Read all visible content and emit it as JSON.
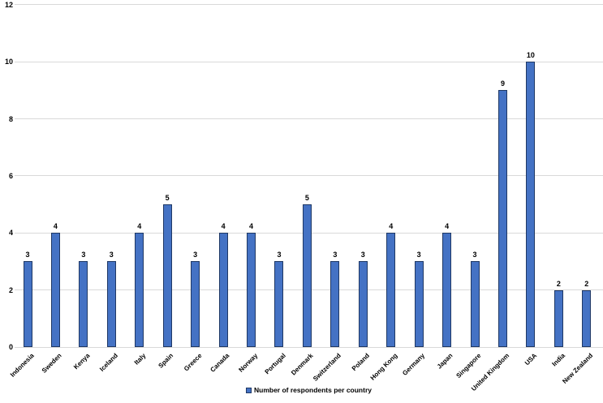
{
  "chart_data": {
    "type": "bar",
    "title": "",
    "xlabel": "",
    "ylabel": "",
    "legend": "Number of respondents per country",
    "legend_position": "bottom-center",
    "categories": [
      "Indonesia",
      "Sweden",
      "Kenya",
      "Iceland",
      "Italy",
      "Spain",
      "Greece",
      "Canada",
      "Norway",
      "Portugal",
      "Denmark",
      "Switzerland",
      "Poland",
      "Hong Kong",
      "Germany",
      "Japan",
      "Singapore",
      "United Kingdom",
      "USA",
      "India",
      "New Zealand"
    ],
    "values": [
      3,
      4,
      3,
      3,
      4,
      5,
      3,
      4,
      4,
      3,
      5,
      3,
      3,
      4,
      3,
      4,
      3,
      9,
      10,
      2,
      2
    ],
    "ylim": [
      0,
      12
    ],
    "yticks": [
      0,
      2,
      4,
      6,
      8,
      10,
      12
    ],
    "grid": "horizontal",
    "bar_fill": "#4472C4",
    "bar_border": "#1F3864",
    "gridline_color": "#D9D9D9",
    "text_color": "#000000",
    "background": "#FFFFFF"
  }
}
